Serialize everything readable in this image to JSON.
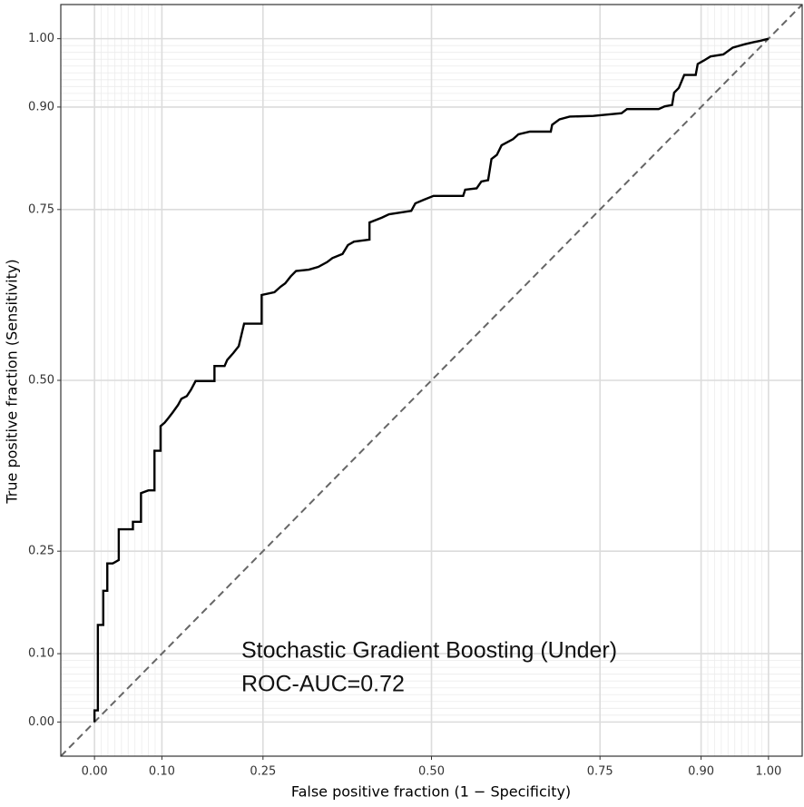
{
  "chart_data": {
    "type": "line",
    "xlabel": "False positive fraction (1 − Specificity)",
    "ylabel": "True positive fraction (Sensitivity)",
    "annotations": [
      "Stochastic Gradient Boosting (Under)",
      "ROC-AUC=0.72"
    ],
    "xlim": [
      -0.05,
      1.05
    ],
    "ylim": [
      -0.05,
      1.05
    ],
    "xticks": [
      {
        "value": 0,
        "label": "0.00"
      },
      {
        "value": 0.1,
        "label": "0.10"
      },
      {
        "value": 0.25,
        "label": "0.25"
      },
      {
        "value": 0.5,
        "label": "0.50"
      },
      {
        "value": 0.75,
        "label": "0.75"
      },
      {
        "value": 0.9,
        "label": "0.90"
      },
      {
        "value": 1,
        "label": "1.00"
      }
    ],
    "yticks": [
      {
        "value": 0,
        "label": "0.00"
      },
      {
        "value": 0.1,
        "label": "0.10"
      },
      {
        "value": 0.25,
        "label": "0.25"
      },
      {
        "value": 0.5,
        "label": "0.50"
      },
      {
        "value": 0.75,
        "label": "0.75"
      },
      {
        "value": 0.9,
        "label": "0.90"
      },
      {
        "value": 1,
        "label": "1.00"
      }
    ],
    "minor_ticks": [
      0.01,
      0.02,
      0.03,
      0.04,
      0.05,
      0.06,
      0.07,
      0.08,
      0.09,
      0.91,
      0.92,
      0.93,
      0.94,
      0.95,
      0.96,
      0.97,
      0.98,
      0.99
    ],
    "grid": true,
    "series": [
      {
        "color": "#000000",
        "x": [
          0,
          0,
          0.005,
          0.005,
          0.013,
          0.013,
          0.019,
          0.019,
          0.027,
          0.036,
          0.036,
          0.057,
          0.057,
          0.069,
          0.069,
          0.08,
          0.089,
          0.089,
          0.098,
          0.098,
          0.104,
          0.109,
          0.116,
          0.124,
          0.129,
          0.137,
          0.143,
          0.15,
          0.178,
          0.178,
          0.193,
          0.197,
          0.206,
          0.214,
          0.222,
          0.248,
          0.248,
          0.267,
          0.276,
          0.283,
          0.291,
          0.299,
          0.318,
          0.332,
          0.345,
          0.353,
          0.368,
          0.376,
          0.385,
          0.408,
          0.408,
          0.426,
          0.437,
          0.47,
          0.476,
          0.488,
          0.503,
          0.547,
          0.55,
          0.567,
          0.574,
          0.584,
          0.589,
          0.597,
          0.604,
          0.621,
          0.629,
          0.646,
          0.677,
          0.679,
          0.69,
          0.705,
          0.74,
          0.782,
          0.79,
          0.837,
          0.846,
          0.857,
          0.86,
          0.867,
          0.875,
          0.892,
          0.895,
          0.904,
          0.914,
          0.933,
          0.947,
          0.965,
          0.978,
          0.988,
          1
        ],
        "values": [
          0,
          0.017,
          0.017,
          0.142,
          0.142,
          0.192,
          0.192,
          0.232,
          0.232,
          0.237,
          0.282,
          0.282,
          0.293,
          0.293,
          0.335,
          0.339,
          0.339,
          0.397,
          0.397,
          0.433,
          0.438,
          0.444,
          0.453,
          0.464,
          0.473,
          0.477,
          0.486,
          0.499,
          0.499,
          0.521,
          0.521,
          0.53,
          0.54,
          0.55,
          0.583,
          0.583,
          0.625,
          0.629,
          0.637,
          0.642,
          0.652,
          0.66,
          0.662,
          0.666,
          0.673,
          0.679,
          0.685,
          0.698,
          0.703,
          0.706,
          0.731,
          0.738,
          0.743,
          0.748,
          0.759,
          0.764,
          0.77,
          0.77,
          0.779,
          0.781,
          0.791,
          0.793,
          0.824,
          0.83,
          0.844,
          0.853,
          0.86,
          0.864,
          0.864,
          0.874,
          0.882,
          0.886,
          0.887,
          0.891,
          0.897,
          0.897,
          0.901,
          0.903,
          0.921,
          0.928,
          0.947,
          0.947,
          0.963,
          0.968,
          0.974,
          0.977,
          0.987,
          0.992,
          0.995,
          0.997,
          1
        ]
      }
    ]
  }
}
